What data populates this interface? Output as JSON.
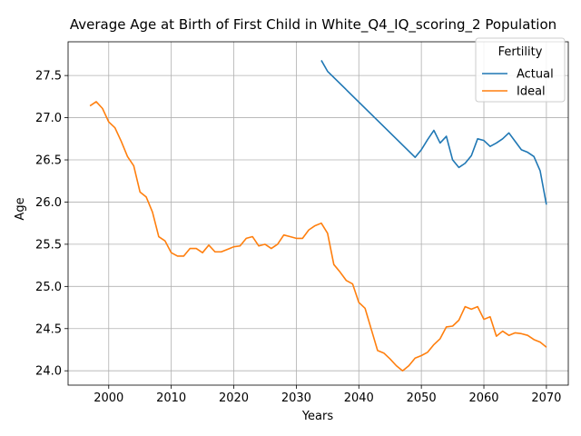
{
  "chart_data": {
    "type": "line",
    "title": "Average Age at Birth of First Child in White_Q4_IQ_scoring_2 Population",
    "xlabel": "Years",
    "ylabel": "Age",
    "xlim": [
      1993.5,
      2073.5
    ],
    "ylim": [
      23.83,
      27.9
    ],
    "xticks": [
      2000,
      2010,
      2020,
      2030,
      2040,
      2050,
      2060,
      2070
    ],
    "yticks": [
      24.0,
      24.5,
      25.0,
      25.5,
      26.0,
      26.5,
      27.0,
      27.5
    ],
    "xtick_labels": [
      "2000",
      "2010",
      "2020",
      "2030",
      "2040",
      "2050",
      "2060",
      "2070"
    ],
    "ytick_labels": [
      "24.0",
      "24.5",
      "25.0",
      "25.5",
      "26.0",
      "26.5",
      "27.0",
      "27.5"
    ],
    "grid": true,
    "legend": {
      "title": "Fertility",
      "position": "upper-right"
    },
    "series": [
      {
        "name": "Actual",
        "color": "#1f77b4",
        "x": [
          2034,
          2035,
          2049,
          2050,
          2051,
          2052,
          2053,
          2054,
          2055,
          2056,
          2057,
          2058,
          2059,
          2060,
          2061,
          2062,
          2063,
          2064,
          2065,
          2066,
          2067,
          2068,
          2069,
          2070
        ],
        "y": [
          27.68,
          27.55,
          26.53,
          26.62,
          26.74,
          26.85,
          26.7,
          26.78,
          26.5,
          26.41,
          26.46,
          26.55,
          26.75,
          26.73,
          26.66,
          26.7,
          26.75,
          26.82,
          26.72,
          26.62,
          26.59,
          26.54,
          26.37,
          25.97
        ]
      },
      {
        "name": "Ideal",
        "color": "#ff7f0e",
        "x": [
          1997,
          1998,
          1999,
          2000,
          2001,
          2002,
          2003,
          2004,
          2005,
          2006,
          2007,
          2008,
          2009,
          2010,
          2011,
          2012,
          2013,
          2014,
          2015,
          2016,
          2017,
          2018,
          2019,
          2020,
          2021,
          2022,
          2023,
          2024,
          2025,
          2026,
          2027,
          2028,
          2029,
          2030,
          2031,
          2032,
          2033,
          2034,
          2035,
          2036,
          2037,
          2038,
          2039,
          2040,
          2041,
          2042,
          2043,
          2044,
          2045,
          2046,
          2047,
          2048,
          2049,
          2050,
          2051,
          2052,
          2053,
          2054,
          2055,
          2056,
          2057,
          2058,
          2059,
          2060,
          2061,
          2062,
          2063,
          2064,
          2065,
          2066,
          2067,
          2068,
          2069,
          2070
        ],
        "y": [
          27.14,
          27.19,
          27.11,
          26.95,
          26.88,
          26.72,
          26.54,
          26.43,
          26.12,
          26.06,
          25.88,
          25.59,
          25.54,
          25.4,
          25.36,
          25.36,
          25.45,
          25.45,
          25.4,
          25.49,
          25.41,
          25.41,
          25.44,
          25.47,
          25.48,
          25.57,
          25.59,
          25.48,
          25.5,
          25.45,
          25.5,
          25.61,
          25.59,
          25.57,
          25.57,
          25.67,
          25.72,
          25.75,
          25.63,
          25.26,
          25.17,
          25.07,
          25.03,
          24.81,
          24.74,
          24.49,
          24.24,
          24.21,
          24.14,
          24.06,
          24.0,
          24.06,
          24.15,
          24.18,
          24.22,
          24.31,
          24.38,
          24.52,
          24.53,
          24.6,
          24.76,
          24.73,
          24.76,
          24.61,
          24.64,
          24.41,
          24.47,
          24.42,
          24.45,
          24.44,
          24.42,
          24.37,
          24.34,
          24.28
        ]
      }
    ]
  }
}
